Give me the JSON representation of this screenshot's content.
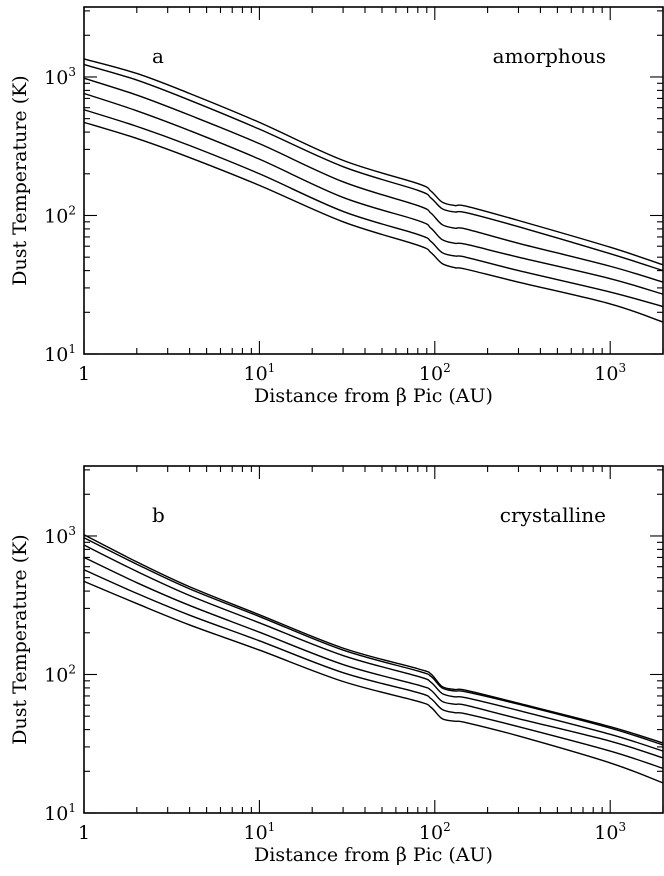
{
  "chart_data": [
    {
      "type": "line",
      "panel_label": "a",
      "annotation": "amorphous",
      "xlabel": "Distance from β Pic (AU)",
      "ylabel": "Dust Temperature (K)",
      "xscale": "log",
      "yscale": "log",
      "xlim": [
        1,
        2000
      ],
      "ylim": [
        10,
        3200
      ],
      "x_ticks": [
        {
          "base": "1",
          "exp": ""
        },
        {
          "base": "10",
          "exp": "1"
        },
        {
          "base": "10",
          "exp": "2"
        },
        {
          "base": "10",
          "exp": "3"
        }
      ],
      "y_ticks": [
        {
          "base": "10",
          "exp": "1"
        },
        {
          "base": "10",
          "exp": "2"
        },
        {
          "base": "10",
          "exp": "3"
        }
      ],
      "x": [
        1,
        2,
        4,
        10,
        30,
        80,
        95,
        110,
        130,
        150,
        300,
        1000,
        2000
      ],
      "series": [
        {
          "values": [
            1350,
            1060,
            760,
            470,
            250,
            170,
            150,
            125,
            118,
            117,
            92,
            59,
            44
          ]
        },
        {
          "values": [
            1230,
            950,
            680,
            420,
            225,
            152,
            134,
            112,
            106,
            105,
            83,
            53,
            40
          ]
        },
        {
          "values": [
            980,
            740,
            530,
            330,
            175,
            118,
            104,
            86,
            81,
            80,
            63,
            43,
            33
          ]
        },
        {
          "values": [
            760,
            570,
            410,
            255,
            135,
            92,
            81,
            67,
            63,
            62,
            50,
            35,
            27
          ]
        },
        {
          "values": [
            580,
            440,
            320,
            200,
            107,
            73,
            65,
            54,
            51,
            50,
            40,
            28,
            22
          ]
        },
        {
          "values": [
            470,
            360,
            262,
            165,
            90,
            61,
            54,
            45,
            42,
            41,
            33,
            23,
            17
          ]
        }
      ]
    },
    {
      "type": "line",
      "panel_label": "b",
      "annotation": "crystalline",
      "xlabel": "Distance from β Pic (AU)",
      "ylabel": "Dust Temperature (K)",
      "xscale": "log",
      "yscale": "log",
      "xlim": [
        1,
        2000
      ],
      "ylim": [
        10,
        3200
      ],
      "x_ticks": [
        {
          "base": "1",
          "exp": ""
        },
        {
          "base": "10",
          "exp": "1"
        },
        {
          "base": "10",
          "exp": "2"
        },
        {
          "base": "10",
          "exp": "3"
        }
      ],
      "y_ticks": [
        {
          "base": "10",
          "exp": "1"
        },
        {
          "base": "10",
          "exp": "2"
        },
        {
          "base": "10",
          "exp": "3"
        }
      ],
      "x": [
        1,
        2,
        4,
        10,
        30,
        80,
        95,
        110,
        130,
        150,
        300,
        1000,
        2000
      ],
      "series": [
        {
          "values": [
            1020,
            650,
            430,
            270,
            155,
            110,
            101,
            82,
            78,
            77,
            62,
            42,
            32
          ]
        },
        {
          "values": [
            970,
            625,
            415,
            262,
            150,
            106,
            97,
            80,
            76,
            75,
            61,
            41,
            31
          ]
        },
        {
          "values": [
            860,
            555,
            372,
            236,
            137,
            97,
            88,
            73,
            69,
            68,
            55,
            37,
            28
          ]
        },
        {
          "values": [
            700,
            460,
            315,
            202,
            118,
            84,
            77,
            64,
            61,
            60,
            48,
            33,
            25
          ]
        },
        {
          "values": [
            570,
            385,
            268,
            175,
            103,
            74,
            67,
            56,
            53,
            52,
            42,
            28,
            21
          ]
        },
        {
          "values": [
            470,
            325,
            228,
            150,
            89,
            64,
            58,
            48,
            46,
            45,
            36,
            23,
            16.5
          ]
        }
      ]
    }
  ]
}
